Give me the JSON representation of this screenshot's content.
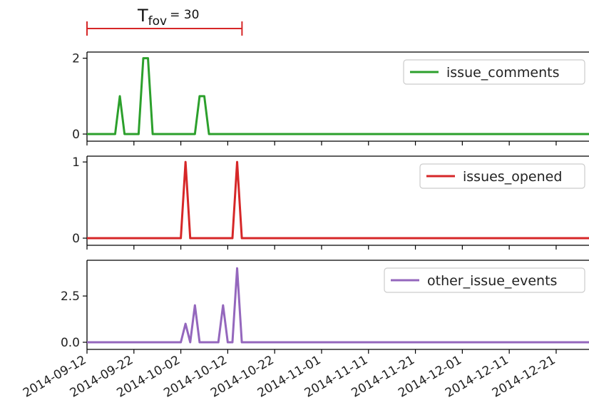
{
  "annotation": {
    "symbol": "T",
    "subscript": "fov",
    "equals_text": "= 30",
    "window_start": "2014-09-12",
    "window_days": 30,
    "color": "#d62728"
  },
  "chart_data": [
    {
      "type": "line",
      "series": [
        {
          "name": "issue_comments",
          "color": "#2ca02c",
          "points": [
            [
              "2014-09-12",
              0
            ],
            [
              "2014-09-18",
              0
            ],
            [
              "2014-09-19",
              1
            ],
            [
              "2014-09-20",
              0
            ],
            [
              "2014-09-23",
              0
            ],
            [
              "2014-09-24",
              2
            ],
            [
              "2014-09-25",
              2
            ],
            [
              "2014-09-26",
              0
            ],
            [
              "2014-10-05",
              0
            ],
            [
              "2014-10-06",
              1
            ],
            [
              "2014-10-07",
              1
            ],
            [
              "2014-10-08",
              0
            ],
            [
              "2014-12-28",
              0
            ]
          ]
        }
      ],
      "x_range": [
        "2014-09-12",
        "2014-12-28"
      ],
      "ylim": [
        0,
        2.05
      ],
      "yticks": [
        0,
        2
      ],
      "ytick_labels": [
        "0",
        "2"
      ],
      "legend_position": "upper right",
      "grid": false
    },
    {
      "type": "line",
      "series": [
        {
          "name": "issues_opened",
          "color": "#d62728",
          "points": [
            [
              "2014-09-12",
              0
            ],
            [
              "2014-10-02",
              0
            ],
            [
              "2014-10-03",
              1
            ],
            [
              "2014-10-04",
              0
            ],
            [
              "2014-10-13",
              0
            ],
            [
              "2014-10-14",
              1
            ],
            [
              "2014-10-15",
              0
            ],
            [
              "2014-12-28",
              0
            ]
          ]
        }
      ],
      "x_range": [
        "2014-09-12",
        "2014-12-28"
      ],
      "ylim": [
        0,
        1.02
      ],
      "yticks": [
        0,
        1
      ],
      "ytick_labels": [
        "0",
        "1"
      ],
      "legend_position": "upper right",
      "grid": false
    },
    {
      "type": "line",
      "series": [
        {
          "name": "other_issue_events",
          "color": "#9467bd",
          "points": [
            [
              "2014-09-12",
              0
            ],
            [
              "2014-10-02",
              0
            ],
            [
              "2014-10-03",
              1
            ],
            [
              "2014-10-04",
              0
            ],
            [
              "2014-10-05",
              2
            ],
            [
              "2014-10-06",
              0
            ],
            [
              "2014-10-10",
              0
            ],
            [
              "2014-10-11",
              2
            ],
            [
              "2014-10-12",
              0
            ],
            [
              "2014-10-13",
              0
            ],
            [
              "2014-10-14",
              4
            ],
            [
              "2014-10-15",
              0
            ],
            [
              "2014-12-28",
              0
            ]
          ]
        }
      ],
      "x_range": [
        "2014-09-12",
        "2014-12-28"
      ],
      "ylim": [
        0,
        4.2
      ],
      "yticks": [
        0,
        2.5
      ],
      "ytick_labels": [
        "0.0",
        "2.5"
      ],
      "legend_position": "upper right",
      "grid": false
    }
  ],
  "x_axis": {
    "ticks": [
      "2014-09-12",
      "2014-09-22",
      "2014-10-02",
      "2014-10-12",
      "2014-10-22",
      "2014-11-01",
      "2014-11-11",
      "2014-11-21",
      "2014-12-01",
      "2014-12-11",
      "2014-12-21"
    ],
    "tick_labels": [
      "2014-09-12",
      "2014-09-22",
      "2014-10-02",
      "2014-10-12",
      "2014-10-22",
      "2014-11-01",
      "2014-11-11",
      "2014-11-21",
      "2014-12-01",
      "2014-12-11",
      "2014-12-21"
    ],
    "label_rotation_deg": 30
  }
}
